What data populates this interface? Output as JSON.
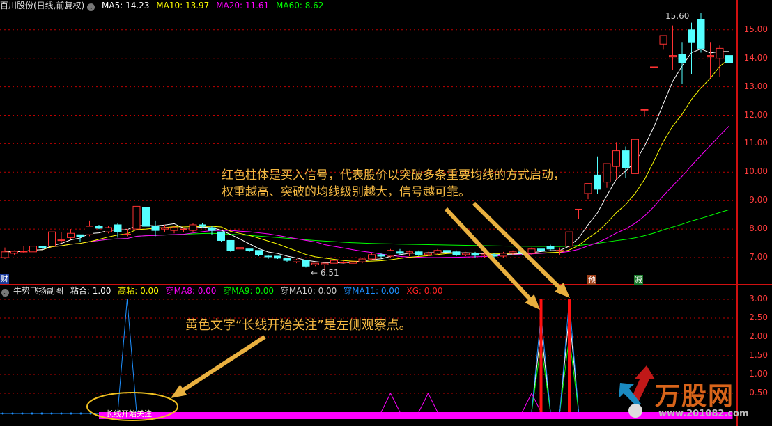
{
  "header": {
    "title": "百川股份(日线,前复权)",
    "ma5": "MA5: 14.23",
    "ma10": "MA10: 13.97",
    "ma20": "MA20: 11.61",
    "ma60": "MA60: 8.62"
  },
  "sub_header": {
    "title": "牛势飞扬副图",
    "nh": "粘合: 1.00",
    "gn": "高粘: 0.00",
    "ma8": "穿MA8: 0.00",
    "ma9": "穿MA9: 0.00",
    "ma10": "穿MA10: 0.00",
    "ma11": "穿MA11: 0.00",
    "xg": "XG: 0.00"
  },
  "colors": {
    "up": "#ff3232",
    "down": "#54ffff",
    "ma5": "#ffffff",
    "ma10": "#ffff00",
    "ma20": "#ff00ff",
    "ma60": "#00ff00",
    "grid": "#c00000",
    "annotation": "#f5b942"
  },
  "price_axis": [
    "15.00",
    "14.00",
    "13.00",
    "12.00",
    "11.00",
    "10.00",
    "9.00",
    "8.00",
    "7.00"
  ],
  "sub_axis": [
    "3.00",
    "2.50",
    "2.00",
    "1.50",
    "1.00",
    "0.50"
  ],
  "labels": {
    "high": "15.60",
    "low": "6.51",
    "cai": "财",
    "yu": "预",
    "jian": "减",
    "band_text": "长线开始关注"
  },
  "annotations": {
    "line1": "红色柱体是买入信号，代表股价以突破多条重要均线的方式启动，",
    "line2": "权重越高、突破的均线级别越大，信号越可靠。",
    "yellow": "黄色文字“长线开始关注”是左侧观察点。"
  },
  "logo": {
    "name": "万股网",
    "url": "www.201082.com"
  },
  "chart_data": {
    "type": "candlestick",
    "ylim": [
      6.5,
      15.6
    ],
    "candles": [
      [
        7.0,
        7.2,
        7.35,
        6.95
      ],
      [
        7.15,
        7.22,
        7.25,
        7.1
      ],
      [
        7.2,
        7.22,
        7.4,
        7.15
      ],
      [
        7.2,
        7.4,
        7.45,
        7.15
      ],
      [
        7.38,
        7.33,
        7.4,
        7.3
      ],
      [
        7.4,
        7.9,
        7.9,
        7.35
      ],
      [
        7.6,
        7.62,
        7.9,
        7.5
      ],
      [
        7.7,
        7.85,
        8.0,
        7.65
      ],
      [
        7.8,
        7.73,
        7.8,
        7.55
      ],
      [
        7.8,
        8.1,
        8.3,
        7.75
      ],
      [
        8.1,
        8.03,
        8.15,
        8.0
      ],
      [
        7.9,
        8.05,
        8.1,
        7.85
      ],
      [
        8.15,
        7.9,
        8.2,
        7.7
      ],
      [
        7.8,
        7.82,
        8.0,
        7.75
      ],
      [
        8.0,
        8.8,
        8.8,
        7.95
      ],
      [
        8.75,
        8.1,
        8.75,
        8.0
      ],
      [
        8.1,
        7.95,
        8.3,
        7.75
      ],
      [
        8.0,
        8.05,
        8.15,
        7.9
      ],
      [
        7.95,
        8.05,
        8.1,
        7.85
      ],
      [
        8.0,
        8.0,
        8.05,
        7.9
      ],
      [
        7.95,
        8.15,
        8.2,
        7.9
      ],
      [
        8.15,
        8.1,
        8.2,
        8.05
      ],
      [
        8.05,
        7.95,
        8.1,
        7.8
      ],
      [
        7.9,
        7.6,
        7.9,
        7.55
      ],
      [
        7.6,
        7.25,
        7.6,
        7.2
      ],
      [
        7.3,
        7.35,
        7.35,
        7.2
      ],
      [
        7.3,
        7.25,
        7.3,
        7.2
      ],
      [
        7.25,
        7.1,
        7.25,
        7.05
      ],
      [
        7.05,
        7.03,
        7.1,
        6.95
      ],
      [
        7.05,
        6.98,
        7.05,
        6.95
      ],
      [
        6.98,
        6.9,
        7.0,
        6.85
      ],
      [
        6.85,
        6.92,
        6.95,
        6.8
      ],
      [
        6.9,
        6.7,
        6.9,
        6.65
      ],
      [
        6.75,
        6.8,
        6.8,
        6.7
      ],
      [
        6.75,
        6.8,
        6.82,
        6.51
      ],
      [
        6.8,
        6.9,
        6.92,
        6.75
      ],
      [
        6.82,
        6.84,
        6.9,
        6.78
      ],
      [
        6.8,
        6.85,
        6.9,
        6.78
      ],
      [
        6.85,
        6.95,
        7.0,
        6.8
      ],
      [
        6.95,
        7.1,
        7.15,
        6.9
      ],
      [
        7.1,
        7.05,
        7.15,
        7.0
      ],
      [
        7.05,
        7.25,
        7.3,
        7.0
      ],
      [
        7.2,
        7.15,
        7.3,
        7.1
      ],
      [
        7.15,
        7.2,
        7.25,
        7.05
      ],
      [
        7.2,
        7.1,
        7.25,
        7.05
      ],
      [
        7.1,
        7.15,
        7.2,
        7.05
      ],
      [
        7.15,
        7.25,
        7.3,
        7.1
      ],
      [
        7.25,
        7.2,
        7.3,
        7.15
      ],
      [
        7.2,
        7.1,
        7.25,
        7.05
      ],
      [
        7.1,
        7.15,
        7.2,
        7.05
      ],
      [
        7.15,
        7.08,
        7.2,
        7.0
      ],
      [
        7.08,
        7.12,
        7.2,
        7.0
      ],
      [
        7.1,
        7.05,
        7.15,
        7.0
      ],
      [
        7.05,
        7.15,
        7.2,
        7.0
      ],
      [
        7.15,
        7.2,
        7.25,
        7.1
      ],
      [
        7.2,
        7.15,
        7.25,
        7.1
      ],
      [
        7.15,
        7.3,
        7.35,
        7.1
      ],
      [
        7.3,
        7.25,
        7.35,
        7.2
      ],
      [
        7.4,
        7.3,
        7.45,
        7.25
      ],
      [
        7.25,
        7.25,
        7.35,
        7.1
      ],
      [
        7.4,
        7.9,
        7.9,
        7.35
      ],
      [
        8.7,
        8.7,
        8.7,
        8.35
      ],
      [
        9.25,
        9.6,
        9.6,
        9.05
      ],
      [
        9.9,
        9.4,
        10.55,
        9.25
      ],
      [
        9.65,
        10.3,
        10.3,
        9.45
      ],
      [
        10.2,
        10.75,
        11.05,
        9.75
      ],
      [
        10.75,
        10.15,
        10.9,
        9.8
      ],
      [
        9.95,
        11.15,
        11.15,
        9.75
      ],
      [
        12.2,
        12.2,
        12.2,
        11.95
      ],
      [
        13.7,
        13.7,
        13.7,
        13.7
      ],
      [
        14.5,
        14.8,
        14.8,
        14.3
      ],
      [
        14.05,
        14.1,
        15.15,
        13.6
      ],
      [
        14.15,
        13.85,
        14.55,
        13.1
      ],
      [
        15.0,
        14.55,
        15.25,
        13.45
      ],
      [
        15.35,
        14.35,
        15.6,
        14.2
      ],
      [
        14.05,
        14.1,
        14.55,
        13.3
      ],
      [
        14.0,
        14.35,
        14.45,
        13.35
      ],
      [
        14.1,
        13.85,
        14.4,
        13.15
      ]
    ],
    "ma_periods": [
      5,
      10,
      20,
      60
    ],
    "sub": {
      "ylim": [
        0,
        3.1
      ],
      "series": [
        {
          "name": "粘合",
          "color": "#ffffff",
          "peaks": [
            [
              57,
              2.2
            ],
            [
              60,
              2.6
            ]
          ]
        },
        {
          "name": "穿MA9",
          "color": "#00ff00",
          "peaks": [
            [
              57,
              1.8
            ],
            [
              60,
              2.0
            ]
          ]
        },
        {
          "name": "穿MA11",
          "color": "#1e90ff",
          "peaks": [
            [
              13,
              3.0
            ],
            [
              57,
              2.6
            ],
            [
              60,
              3.0
            ]
          ]
        },
        {
          "name": "穿MA8",
          "color": "#ff00ff",
          "peaks": [
            [
              41,
              0.5
            ],
            [
              45,
              0.5
            ],
            [
              56,
              0.5
            ]
          ]
        }
      ],
      "xg_bars": [
        [
          57,
          3.0
        ],
        [
          60,
          3.0
        ]
      ],
      "band_range": [
        10,
        77
      ]
    }
  }
}
